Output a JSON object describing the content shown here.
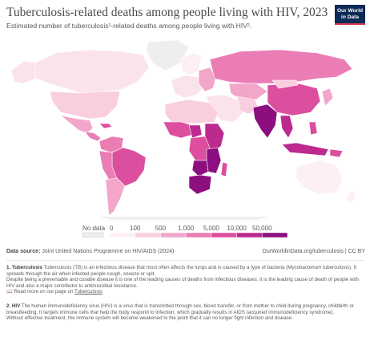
{
  "title": "Tuberculosis-related deaths among people living with HIV, 2023",
  "subtitle": "Estimated number of tuberculosis¹-related deaths among people living with HIV².",
  "logo": {
    "line1": "Our World",
    "line2": "in Data"
  },
  "legend": {
    "no_data_label": "No data",
    "ticks": [
      "0",
      "100",
      "500",
      "1,000",
      "5,000",
      "10,000",
      "50,000"
    ],
    "colors": [
      "#fdf0f4",
      "#f9cfe0",
      "#f2a6c9",
      "#ea7db4",
      "#dc4e9e",
      "#bc2a8e",
      "#8c0e7f"
    ]
  },
  "source": {
    "label": "Data source:",
    "text": "Joint United Nations Programme on HIV/AIDS (2024)"
  },
  "credit": "OurWorldinData.org/tuberculosis | CC BY",
  "footnotes": {
    "tb_num": "1.",
    "tb_term": "Tuberculosis",
    "tb_text": "Tuberculosis (TB) is an infectious disease that most often affects the lungs and is caused by a type of bacteria (Mycobacterium tuberculosis). It spreads through the air when infected people cough, sneeze or spit.",
    "tb_text2": "Despite being a preventable and curable disease it is one of the leading causes of deaths from infectious diseases. It is the leading cause of death of people with HIV and also a major contributor to antimicrobial resistance.",
    "tb_link_prefix": "Read more on our page on",
    "tb_link": "Tuberculosis",
    "hiv_num": "2.",
    "hiv_term": "HIV",
    "hiv_text": "The human immunodeficiency virus (HIV) is a virus that is transmitted through sex, blood transfer, or from mother to child during pregnancy, childbirth or breastfeeding. It targets immune cells that help the body respond to infection, which gradually results in AIDS (acquired immunodeficiency syndrome).",
    "hiv_text2": "Without effective treatment, the immune system will become weakened to the point that it can no longer fight infection and disease."
  }
}
